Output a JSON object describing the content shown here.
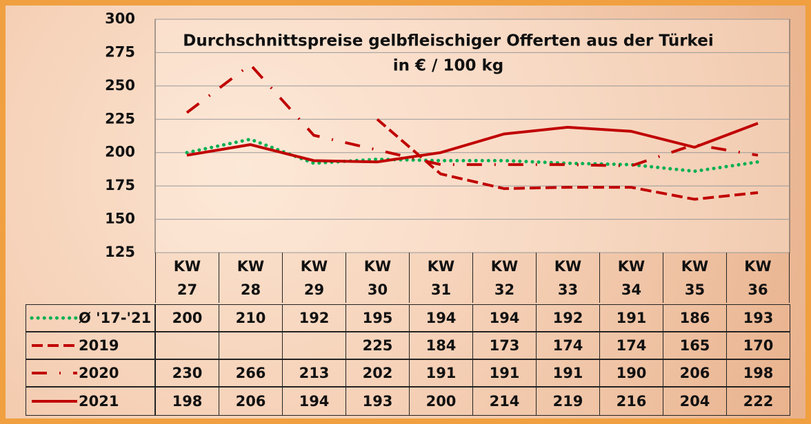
{
  "chart_data": {
    "type": "line",
    "title": "Durchschnittspreise gelbfleischiger Offerten aus der Türkei",
    "subtitle": "in € / 100 kg",
    "categories": [
      "KW 27",
      "KW 28",
      "KW 29",
      "KW 30",
      "KW 31",
      "KW 32",
      "KW 33",
      "KW 34",
      "KW 35",
      "KW 36"
    ],
    "series": [
      {
        "name": "Ø '17-'21",
        "color": "#00b050",
        "style": "dotted",
        "values": [
          200,
          210,
          192,
          195,
          194,
          194,
          192,
          191,
          186,
          193
        ]
      },
      {
        "name": "2019",
        "color": "#c00000",
        "style": "dashed",
        "values": [
          null,
          null,
          null,
          225,
          184,
          173,
          174,
          174,
          165,
          170
        ]
      },
      {
        "name": "2020",
        "color": "#c00000",
        "style": "dashdot",
        "values": [
          230,
          266,
          213,
          202,
          191,
          191,
          191,
          190,
          206,
          198
        ]
      },
      {
        "name": "2021",
        "color": "#c00000",
        "style": "solid",
        "values": [
          198,
          206,
          194,
          193,
          200,
          214,
          219,
          216,
          204,
          222
        ]
      }
    ],
    "ylim": [
      125,
      300
    ],
    "yticks": [
      125,
      150,
      175,
      200,
      225,
      250,
      275,
      300
    ],
    "grid": true
  }
}
